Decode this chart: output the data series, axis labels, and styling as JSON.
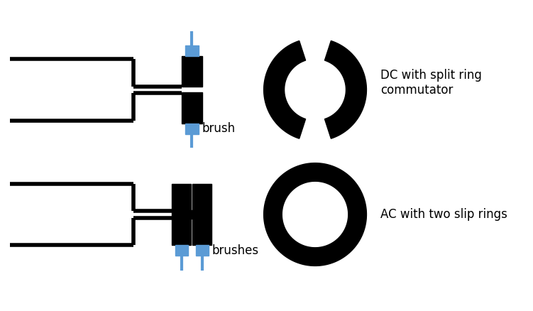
{
  "bg_color": "#ffffff",
  "black": "#000000",
  "blue": "#5b9bd5",
  "text_color": "#000000",
  "brush_label_color": "#c07000",
  "line_width": 4.0,
  "fig_width": 7.51,
  "fig_height": 4.38,
  "label_brush": "brush",
  "label_brushes": "brushes",
  "label_dc": "DC with split ring\ncommutator",
  "label_ac": "AC with two slip rings",
  "dpi": 100
}
